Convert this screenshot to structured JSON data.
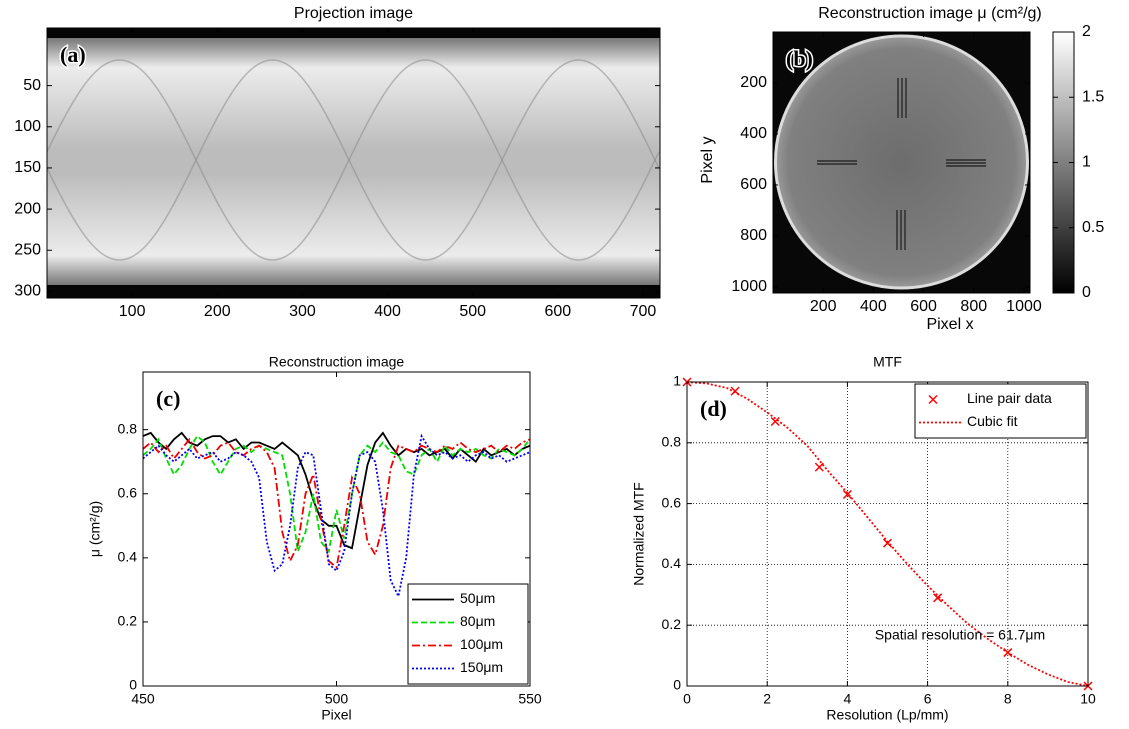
{
  "chart_data": [
    {
      "type": "image",
      "title": "Projection image",
      "panel_label": "(a)",
      "xlim": [
        0,
        720
      ],
      "xticks": [
        100,
        200,
        300,
        400,
        500,
        600,
        700
      ],
      "ylim": [
        -20,
        308
      ],
      "y_reversed": true,
      "yticks": [
        50,
        100,
        150,
        200,
        250,
        300
      ],
      "grid": false
    },
    {
      "type": "image",
      "title": "Reconstruction image μ (cm²/g)",
      "panel_label": "(b)",
      "xlabel": "Pixel x",
      "ylabel": "Pixel y",
      "xlim": [
        0,
        1024
      ],
      "xticks": [
        200,
        400,
        600,
        800,
        1000
      ],
      "ylim": [
        0,
        1024
      ],
      "y_reversed": true,
      "yticks": [
        200,
        400,
        600,
        800,
        1000
      ],
      "grid": false,
      "colorbar": {
        "lim": [
          0,
          2
        ],
        "ticks": [
          0,
          0.5,
          1,
          1.5,
          2
        ]
      }
    },
    {
      "type": "line",
      "title": "Reconstruction image",
      "panel_label": "(c)",
      "xlabel": "Pixel",
      "ylabel": "μ (cm²/g)",
      "xlim": [
        450,
        550
      ],
      "xticks": [
        450,
        500,
        550
      ],
      "ylim": [
        0,
        0.98
      ],
      "yticks": [
        0,
        0.2,
        0.4,
        0.6,
        0.8
      ],
      "grid": false,
      "legend": "lower right",
      "x": [
        450,
        452,
        454,
        456,
        458,
        460,
        462,
        464,
        466,
        468,
        470,
        472,
        474,
        476,
        478,
        480,
        482,
        484,
        486,
        488,
        490,
        492,
        494,
        496,
        498,
        500,
        502,
        504,
        506,
        508,
        510,
        512,
        514,
        516,
        518,
        520,
        522,
        524,
        526,
        528,
        530,
        532,
        534,
        536,
        538,
        540,
        542,
        544,
        546,
        548,
        550
      ],
      "series": [
        {
          "name": "50μm",
          "color": "#000000",
          "linestyle": "solid",
          "values": [
            0.78,
            0.79,
            0.76,
            0.74,
            0.77,
            0.79,
            0.76,
            0.75,
            0.77,
            0.78,
            0.78,
            0.76,
            0.77,
            0.74,
            0.76,
            0.76,
            0.75,
            0.74,
            0.76,
            0.74,
            0.72,
            0.66,
            0.58,
            0.52,
            0.5,
            0.5,
            0.44,
            0.43,
            0.56,
            0.69,
            0.76,
            0.79,
            0.75,
            0.72,
            0.74,
            0.73,
            0.74,
            0.72,
            0.73,
            0.74,
            0.71,
            0.74,
            0.72,
            0.7,
            0.74,
            0.72,
            0.73,
            0.74,
            0.72,
            0.74,
            0.75
          ]
        },
        {
          "name": "80μm",
          "color": "#00dd00",
          "linestyle": "dashed",
          "values": [
            0.72,
            0.74,
            0.77,
            0.71,
            0.66,
            0.69,
            0.74,
            0.78,
            0.76,
            0.7,
            0.66,
            0.7,
            0.74,
            0.75,
            0.73,
            0.75,
            0.74,
            0.73,
            0.72,
            0.6,
            0.42,
            0.48,
            0.6,
            0.45,
            0.42,
            0.55,
            0.46,
            0.6,
            0.72,
            0.75,
            0.73,
            0.76,
            0.73,
            0.72,
            0.67,
            0.66,
            0.72,
            0.74,
            0.7,
            0.75,
            0.72,
            0.74,
            0.73,
            0.74,
            0.72,
            0.71,
            0.74,
            0.73,
            0.72,
            0.74,
            0.77
          ]
        },
        {
          "name": "100μm",
          "color": "#ee0000",
          "linestyle": "dashdot",
          "values": [
            0.74,
            0.76,
            0.73,
            0.75,
            0.71,
            0.74,
            0.77,
            0.73,
            0.71,
            0.72,
            0.75,
            0.76,
            0.73,
            0.72,
            0.74,
            0.75,
            0.73,
            0.68,
            0.48,
            0.39,
            0.44,
            0.6,
            0.66,
            0.52,
            0.39,
            0.37,
            0.5,
            0.65,
            0.6,
            0.45,
            0.41,
            0.5,
            0.68,
            0.75,
            0.74,
            0.73,
            0.75,
            0.74,
            0.73,
            0.75,
            0.74,
            0.76,
            0.74,
            0.73,
            0.74,
            0.75,
            0.73,
            0.75,
            0.74,
            0.76,
            0.77
          ]
        },
        {
          "name": "150μm",
          "color": "#0000ee",
          "linestyle": "dotted",
          "values": [
            0.71,
            0.73,
            0.75,
            0.72,
            0.7,
            0.72,
            0.74,
            0.71,
            0.72,
            0.73,
            0.7,
            0.71,
            0.73,
            0.72,
            0.7,
            0.65,
            0.45,
            0.36,
            0.38,
            0.5,
            0.68,
            0.73,
            0.72,
            0.55,
            0.38,
            0.36,
            0.42,
            0.6,
            0.72,
            0.73,
            0.7,
            0.55,
            0.33,
            0.28,
            0.4,
            0.66,
            0.78,
            0.74,
            0.72,
            0.73,
            0.71,
            0.72,
            0.7,
            0.72,
            0.73,
            0.71,
            0.72,
            0.7,
            0.71,
            0.72,
            0.73
          ]
        }
      ]
    },
    {
      "type": "line",
      "title": "MTF",
      "panel_label": "(d)",
      "xlabel": "Resolution (Lp/mm)",
      "ylabel": "Normalized MTF",
      "annotation": "Spatial resolution = 61.7μm",
      "xlim": [
        0,
        10
      ],
      "xticks": [
        0,
        2,
        4,
        6,
        8,
        10
      ],
      "ylim": [
        0,
        1
      ],
      "yticks": [
        0,
        0.2,
        0.4,
        0.6,
        0.8,
        1
      ],
      "grid": true,
      "legend": "upper right",
      "series": [
        {
          "name": "Line pair data",
          "color": "#ff0000",
          "marker": "x",
          "x": [
            0,
            1.2,
            2.2,
            3.3,
            4,
            5,
            6.25,
            8,
            10
          ],
          "values": [
            1,
            0.97,
            0.87,
            0.72,
            0.63,
            0.47,
            0.29,
            0.11,
            0
          ]
        },
        {
          "name": "Cubic fit",
          "color": "#ff0000",
          "linestyle": "dotted",
          "x": [
            0,
            0.5,
            1,
            1.5,
            2,
            2.5,
            3,
            3.5,
            4,
            4.5,
            5,
            5.5,
            6,
            6.5,
            7,
            7.5,
            8,
            8.5,
            9,
            9.5,
            10
          ],
          "values": [
            1,
            0.995,
            0.98,
            0.945,
            0.9,
            0.85,
            0.79,
            0.71,
            0.635,
            0.555,
            0.475,
            0.4,
            0.33,
            0.265,
            0.205,
            0.155,
            0.11,
            0.07,
            0.038,
            0.013,
            0
          ]
        }
      ]
    }
  ]
}
